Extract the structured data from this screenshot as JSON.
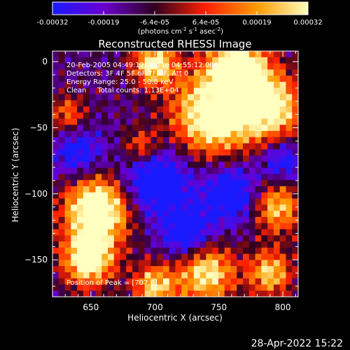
{
  "chart_data": {
    "type": "heatmap",
    "title": "Reconstructed RHESSI Image",
    "xlabel": "Heliocentric X (arcsec)",
    "ylabel": "Heliocentric Y (arcsec)",
    "xlim": [
      620,
      812
    ],
    "ylim": [
      -178,
      8
    ],
    "x_ticks": [
      650,
      700,
      750,
      800
    ],
    "y_ticks": [
      0,
      -50,
      -100,
      -150
    ],
    "colorbar": {
      "min": -0.00032,
      "max": 0.00032,
      "tick_labels": [
        "-0.00032",
        "-0.00019",
        "-6.4e-05",
        "6.4e-05",
        "0.00019",
        "0.00032"
      ],
      "unit_label_parts": [
        "(photons cm",
        "-2",
        " s",
        "-1",
        " asec",
        "-2",
        ")"
      ],
      "colors": [
        "#1a1aff",
        "#6a00d0",
        "#300020",
        "#ff2000",
        "#ff9a00",
        "#ffffc0"
      ]
    },
    "info_lines": [
      "20-Feb-2005 04:49:12.000 to 04:55:12.000",
      "Detectors: 3F 4F 5F 6F 7F 8F, Att 0",
      "Energy Range: 25.0 - 50.0 keV",
      "Clean     Total counts: 1.13E+04"
    ],
    "peak_label": "Position of Peak = [707,6]",
    "grid_cols": 40,
    "grid_rows": 40,
    "hot_spots": [
      {
        "x": 655,
        "y": -112,
        "w": 0.95,
        "s": 18
      },
      {
        "x": 648,
        "y": -150,
        "w": 0.8,
        "s": 14
      },
      {
        "x": 745,
        "y": -40,
        "w": 0.85,
        "s": 22
      },
      {
        "x": 790,
        "y": -35,
        "w": 0.75,
        "s": 18
      },
      {
        "x": 765,
        "y": -5,
        "w": 0.85,
        "s": 16
      },
      {
        "x": 700,
        "y": -2,
        "w": 0.7,
        "s": 12
      },
      {
        "x": 795,
        "y": -110,
        "w": 0.6,
        "s": 14
      },
      {
        "x": 740,
        "y": -160,
        "w": 0.7,
        "s": 16
      },
      {
        "x": 700,
        "y": -170,
        "w": 0.6,
        "s": 12
      },
      {
        "x": 790,
        "y": -160,
        "w": 0.6,
        "s": 12
      },
      {
        "x": 632,
        "y": -40,
        "w": 0.4,
        "s": 10
      },
      {
        "x": 690,
        "y": -65,
        "w": 0.45,
        "s": 10
      }
    ],
    "cold_spots": [
      {
        "x": 700,
        "y": -90,
        "w": -0.6,
        "s": 18
      },
      {
        "x": 760,
        "y": -100,
        "w": -0.5,
        "s": 16
      },
      {
        "x": 640,
        "y": -70,
        "w": -0.4,
        "s": 14
      },
      {
        "x": 800,
        "y": -75,
        "w": -0.4,
        "s": 12
      },
      {
        "x": 725,
        "y": -130,
        "w": -0.5,
        "s": 14
      }
    ]
  },
  "footer": {
    "timestamp": "28-Apr-2022 15:22"
  }
}
